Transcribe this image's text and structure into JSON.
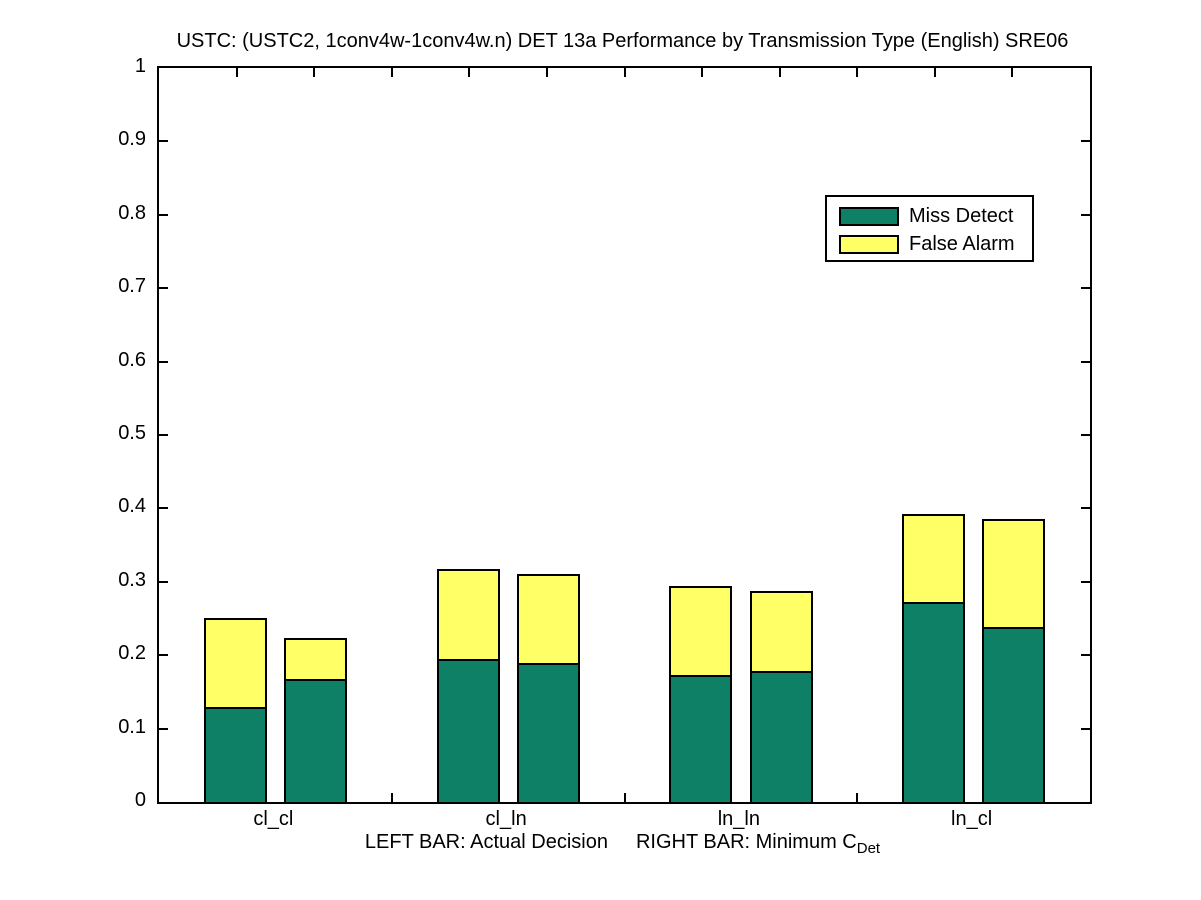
{
  "chart_data": {
    "type": "bar",
    "stacked": true,
    "title": "USTC: (USTC2, 1conv4w-1conv4w.n) DET 13a Performance by Transmission Type (English) SRE06",
    "categories": [
      "cl_cl",
      "cl_ln",
      "ln_ln",
      "ln_cl"
    ],
    "bar_semantics": {
      "left_bar": "Actual Decision",
      "right_bar": "Minimum CDet"
    },
    "series": [
      {
        "name": "Miss Detect",
        "color": "#0E8066",
        "actual_decision": [
          0.13,
          0.195,
          0.173,
          0.272
        ],
        "minimum_cdet": [
          0.168,
          0.189,
          0.179,
          0.238
        ]
      },
      {
        "name": "False Alarm",
        "color": "#FFFF66",
        "actual_decision": [
          0.12,
          0.122,
          0.121,
          0.12
        ],
        "minimum_cdet": [
          0.055,
          0.122,
          0.108,
          0.147
        ]
      }
    ],
    "totals": {
      "actual_decision": [
        0.25,
        0.317,
        0.294,
        0.392
      ],
      "minimum_cdet": [
        0.223,
        0.311,
        0.287,
        0.385
      ]
    },
    "ylim": [
      0,
      1
    ],
    "ytick_labels": [
      "0",
      "0.1",
      "0.2",
      "0.3",
      "0.4",
      "0.5",
      "0.6",
      "0.7",
      "0.8",
      "0.9",
      "1"
    ],
    "xlabel_left": "LEFT BAR: Actual Decision",
    "xlabel_right": "RIGHT BAR: Minimum C",
    "xlabel_right_sub": "Det",
    "legend": {
      "position": "upper-right",
      "entries": [
        "Miss Detect",
        "False Alarm"
      ]
    },
    "axis_color": "#000000",
    "grid": false
  }
}
